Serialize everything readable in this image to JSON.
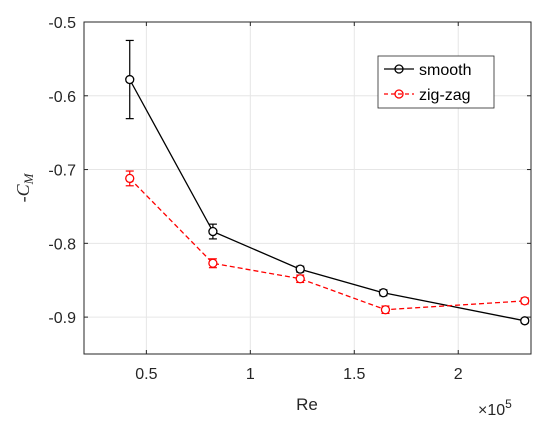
{
  "chart_data": {
    "type": "line",
    "xlabel": "Re",
    "ylabel": {
      "prefix": "-",
      "main": "C",
      "sub": "M"
    },
    "x_exponent": {
      "base": "×10",
      "exp": "5"
    },
    "xlim": [
      0.2,
      2.35
    ],
    "ylim": [
      -0.95,
      -0.5
    ],
    "xticks": [
      0.5,
      1,
      1.5,
      2
    ],
    "xtick_labels": [
      "0.5",
      "1",
      "1.5",
      "2"
    ],
    "yticks": [
      -0.5,
      -0.6,
      -0.7,
      -0.8,
      -0.9
    ],
    "ytick_labels": [
      "-0.5",
      "-0.6",
      "-0.7",
      "-0.8",
      "-0.9"
    ],
    "grid": true,
    "legend_position": "top-right",
    "series": [
      {
        "name": "smooth",
        "color": "#000000",
        "linestyle": "solid",
        "marker": "circle",
        "x": [
          0.42,
          0.82,
          1.24,
          1.64,
          2.32
        ],
        "y": [
          -0.578,
          -0.784,
          -0.835,
          -0.867,
          -0.905
        ],
        "err": [
          0.053,
          0.01,
          0.004,
          0.004,
          0.003
        ]
      },
      {
        "name": "zig-zag",
        "color": "#ff0000",
        "linestyle": "dashed",
        "marker": "circle",
        "x": [
          0.42,
          0.82,
          1.24,
          1.65,
          2.32
        ],
        "y": [
          -0.712,
          -0.827,
          -0.848,
          -0.89,
          -0.878
        ],
        "err": [
          0.01,
          0.006,
          0.005,
          0.005,
          0.004
        ]
      }
    ]
  }
}
